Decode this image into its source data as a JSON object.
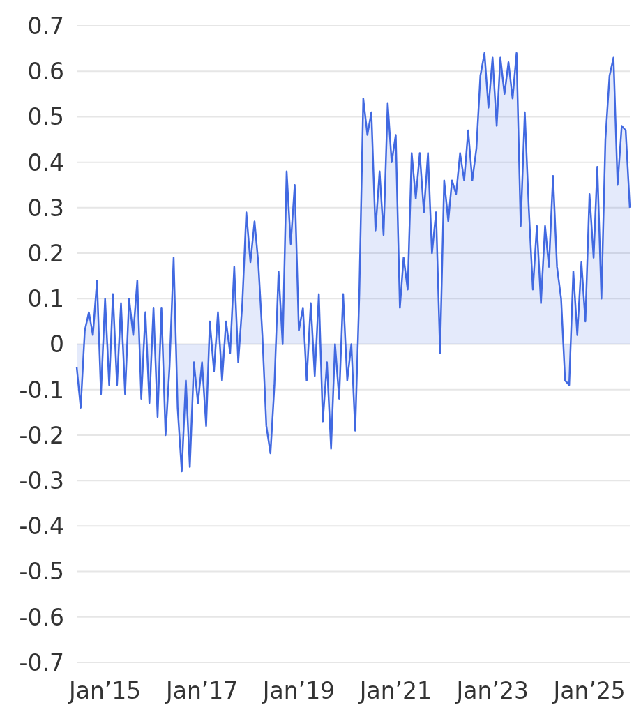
{
  "chart_data": {
    "type": "area",
    "color": "#4169e1",
    "grid": "y",
    "xlim": [
      "2014-06",
      "2025-11"
    ],
    "xticks": [
      {
        "value": "2015-01",
        "label": "Jan’15"
      },
      {
        "value": "2017-01",
        "label": "Jan’17"
      },
      {
        "value": "2019-01",
        "label": "Jan’19"
      },
      {
        "value": "2021-01",
        "label": "Jan’21"
      },
      {
        "value": "2023-01",
        "label": "Jan’23"
      },
      {
        "value": "2025-01",
        "label": "Jan’25"
      }
    ],
    "ylim": [
      -0.7,
      0.7
    ],
    "yticks": [
      -0.7,
      -0.6,
      -0.5,
      -0.4,
      -0.3,
      -0.2,
      -0.1,
      0,
      0.1,
      0.2,
      0.3,
      0.4,
      0.5,
      0.6,
      0.7
    ],
    "x": [
      "2014-06",
      "2014-07",
      "2014-08",
      "2014-09",
      "2014-10",
      "2014-11",
      "2014-12",
      "2015-01",
      "2015-02",
      "2015-03",
      "2015-04",
      "2015-05",
      "2015-06",
      "2015-07",
      "2015-08",
      "2015-09",
      "2015-10",
      "2015-11",
      "2015-12",
      "2016-01",
      "2016-02",
      "2016-03",
      "2016-04",
      "2016-05",
      "2016-06",
      "2016-07",
      "2016-08",
      "2016-09",
      "2016-10",
      "2016-11",
      "2016-12",
      "2017-01",
      "2017-02",
      "2017-03",
      "2017-04",
      "2017-05",
      "2017-06",
      "2017-07",
      "2017-08",
      "2017-09",
      "2017-10",
      "2017-11",
      "2017-12",
      "2018-01",
      "2018-02",
      "2018-03",
      "2018-04",
      "2018-05",
      "2018-06",
      "2018-07",
      "2018-08",
      "2018-09",
      "2018-10",
      "2018-11",
      "2018-12",
      "2019-01",
      "2019-02",
      "2019-03",
      "2019-04",
      "2019-05",
      "2019-06",
      "2019-07",
      "2019-08",
      "2019-09",
      "2019-10",
      "2019-11",
      "2019-12",
      "2020-01",
      "2020-02",
      "2020-03",
      "2020-04",
      "2020-05",
      "2020-06",
      "2020-07",
      "2020-08",
      "2020-09",
      "2020-10",
      "2020-11",
      "2020-12",
      "2021-01",
      "2021-02",
      "2021-03",
      "2021-04",
      "2021-05",
      "2021-06",
      "2021-07",
      "2021-08",
      "2021-09",
      "2021-10",
      "2021-11",
      "2021-12",
      "2022-01",
      "2022-02",
      "2022-03",
      "2022-04",
      "2022-05",
      "2022-06",
      "2022-07",
      "2022-08",
      "2022-09",
      "2022-10",
      "2022-11",
      "2022-12",
      "2023-01",
      "2023-02",
      "2023-03",
      "2023-04",
      "2023-05",
      "2023-06",
      "2023-07",
      "2023-08",
      "2023-09",
      "2023-10",
      "2023-11",
      "2023-12",
      "2024-01",
      "2024-02",
      "2024-03",
      "2024-04",
      "2024-05",
      "2024-06",
      "2024-07",
      "2024-08",
      "2024-09",
      "2024-10",
      "2024-11",
      "2024-12",
      "2025-01",
      "2025-02",
      "2025-03",
      "2025-04",
      "2025-05",
      "2025-06",
      "2025-07",
      "2025-08",
      "2025-09",
      "2025-10",
      "2025-11"
    ],
    "values": [
      -0.05,
      -0.14,
      0.03,
      0.07,
      0.02,
      0.14,
      -0.11,
      0.1,
      -0.09,
      0.11,
      -0.09,
      0.09,
      -0.11,
      0.1,
      0.02,
      0.14,
      -0.12,
      0.07,
      -0.13,
      0.08,
      -0.16,
      0.08,
      -0.2,
      -0.05,
      0.19,
      -0.14,
      -0.28,
      -0.08,
      -0.27,
      -0.04,
      -0.13,
      -0.04,
      -0.18,
      0.05,
      -0.06,
      0.07,
      -0.08,
      0.05,
      -0.02,
      0.17,
      -0.04,
      0.09,
      0.29,
      0.18,
      0.27,
      0.18,
      0.02,
      -0.18,
      -0.24,
      -0.09,
      0.16,
      0,
      0.38,
      0.22,
      0.35,
      0.03,
      0.08,
      -0.08,
      0.09,
      -0.07,
      0.11,
      -0.17,
      -0.04,
      -0.23,
      0,
      -0.12,
      0.11,
      -0.08,
      0,
      -0.19,
      0.11,
      0.54,
      0.46,
      0.51,
      0.25,
      0.38,
      0.24,
      0.53,
      0.4,
      0.46,
      0.08,
      0.19,
      0.12,
      0.42,
      0.32,
      0.42,
      0.29,
      0.42,
      0.2,
      0.29,
      -0.02,
      0.36,
      0.27,
      0.36,
      0.33,
      0.42,
      0.36,
      0.47,
      0.36,
      0.43,
      0.59,
      0.64,
      0.52,
      0.63,
      0.48,
      0.63,
      0.55,
      0.62,
      0.54,
      0.64,
      0.26,
      0.51,
      0.3,
      0.12,
      0.26,
      0.09,
      0.26,
      0.17,
      0.37,
      0.17,
      0.1,
      -0.08,
      -0.09,
      0.16,
      0.02,
      0.18,
      0.05,
      0.33,
      0.19,
      0.39,
      0.1,
      0.45,
      0.59,
      0.63,
      0.35,
      0.48,
      0.47,
      0.3
    ]
  }
}
